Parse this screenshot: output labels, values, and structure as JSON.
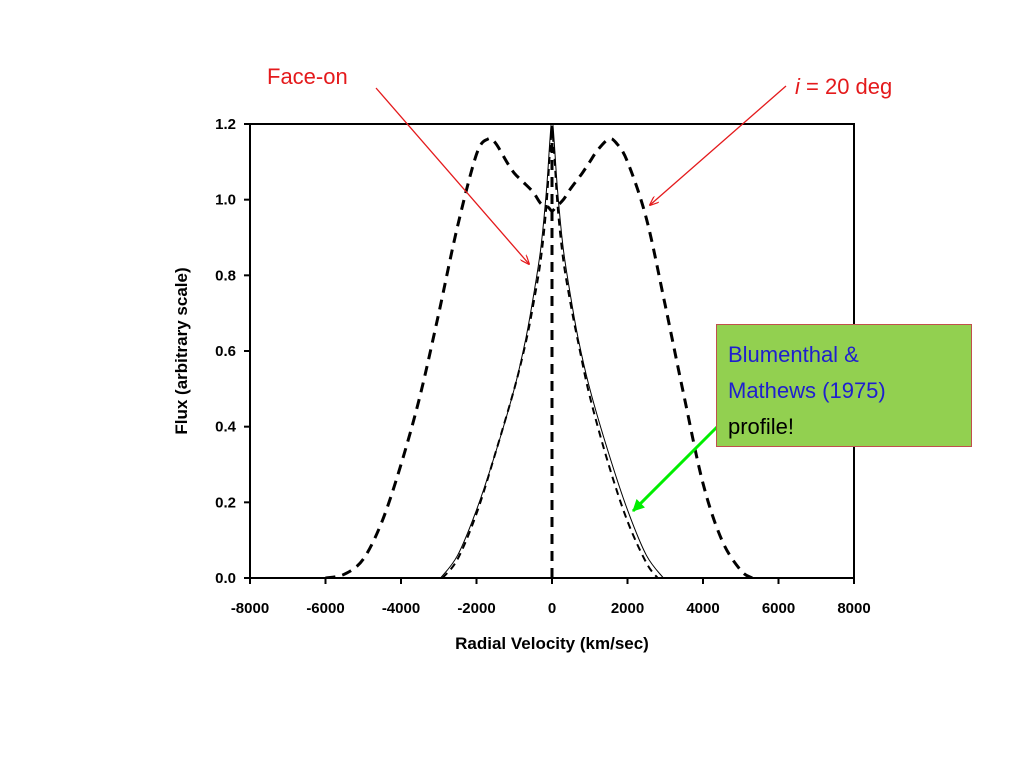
{
  "chart_data": {
    "type": "line",
    "xlabel": "Radial Velocity (km/sec)",
    "ylabel": "Flux (arbitrary scale)",
    "xlim": [
      -8000,
      8000
    ],
    "ylim": [
      0,
      1.2
    ],
    "x_ticks": [
      "-8000",
      "-6000",
      "-4000",
      "-2000",
      "0",
      "2000",
      "4000",
      "6000",
      "8000"
    ],
    "y_ticks": [
      "0.0",
      "0.2",
      "0.4",
      "0.6",
      "0.8",
      "1.0",
      "1.2"
    ],
    "grid": false,
    "series": [
      {
        "style": "dashed-thick",
        "color": "#000000",
        "x": [
          -6000,
          -5500,
          -5000,
          -4500,
          -4000,
          -3500,
          -3000,
          -2500,
          -2000,
          -1700,
          -1500,
          -1200,
          -1000,
          -800,
          -500,
          -300,
          -100,
          0,
          100,
          300,
          500,
          800,
          1000,
          1200,
          1500,
          1700,
          2000,
          2500,
          3000,
          3500,
          4000,
          4500,
          5000,
          5300
        ],
        "y": [
          0.0,
          0.01,
          0.05,
          0.15,
          0.3,
          0.48,
          0.7,
          0.93,
          1.12,
          1.16,
          1.15,
          1.1,
          1.07,
          1.05,
          1.02,
          0.99,
          0.98,
          0.97,
          0.98,
          1.0,
          1.03,
          1.07,
          1.1,
          1.13,
          1.16,
          1.15,
          1.1,
          0.95,
          0.72,
          0.48,
          0.25,
          0.1,
          0.02,
          0.0
        ]
      },
      {
        "style": "dashed-medium",
        "color": "#000000",
        "x": [
          -2900,
          -2500,
          -2000,
          -1500,
          -1000,
          -700,
          -500,
          -300,
          -150,
          -60,
          0,
          60,
          150,
          300,
          500,
          700,
          1000,
          1500,
          2000,
          2500,
          2800
        ],
        "y": [
          0.0,
          0.05,
          0.17,
          0.33,
          0.5,
          0.62,
          0.72,
          0.84,
          0.98,
          1.12,
          1.18,
          1.12,
          0.98,
          0.84,
          0.72,
          0.62,
          0.48,
          0.3,
          0.15,
          0.04,
          0.0
        ]
      },
      {
        "style": "solid-thin",
        "color": "#000000",
        "x": [
          -2950,
          -2500,
          -2000,
          -1500,
          -1000,
          -700,
          -500,
          -300,
          -150,
          -60,
          -20,
          20,
          60,
          150,
          300,
          500,
          700,
          1000,
          1500,
          2000,
          2500,
          2950
        ],
        "y": [
          0.0,
          0.06,
          0.18,
          0.33,
          0.5,
          0.63,
          0.74,
          0.87,
          1.02,
          1.15,
          1.2,
          1.2,
          1.15,
          1.02,
          0.87,
          0.74,
          0.63,
          0.5,
          0.33,
          0.18,
          0.06,
          0.0
        ]
      },
      {
        "style": "dashed-thick",
        "color": "#000000",
        "x": [
          0,
          0
        ],
        "y": [
          0.0,
          1.2
        ]
      }
    ],
    "annotations": {
      "face_on": "Face-on",
      "incl_symbol": "i",
      "incl_rest": " = 20 deg"
    }
  },
  "callout": {
    "line1": "Blumenthal &",
    "line2": "Mathews (1975)",
    "line3": "profile!"
  },
  "colors": {
    "annotation_red": "#e41a1c",
    "callout_fill": "#92d050",
    "callout_text_blue": "#1f1fcf",
    "callout_arrow": "#00ee00"
  }
}
